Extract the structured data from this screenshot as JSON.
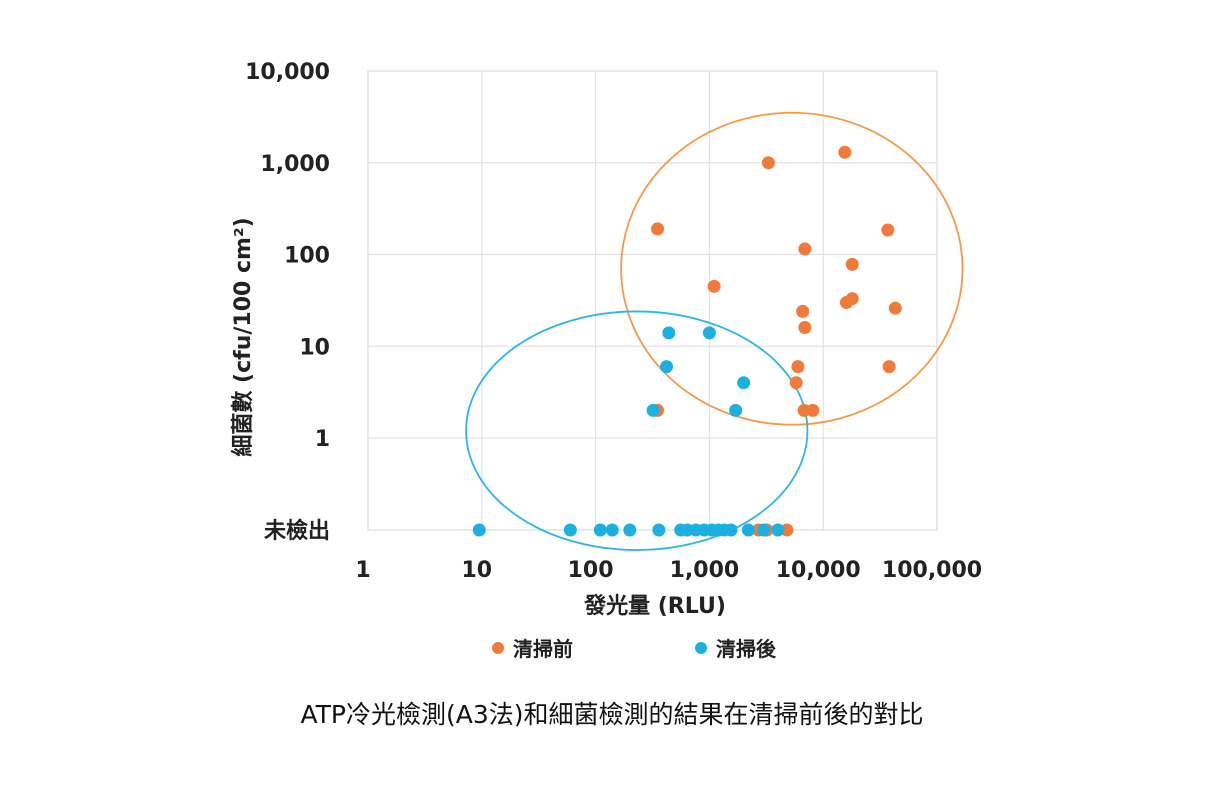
{
  "chart_data": {
    "type": "scatter",
    "title": "",
    "caption": "ATP冷光檢測(A3法)和細菌檢測的結果在清掃前後的對比",
    "xlabel": "發光量 (RLU)",
    "ylabel": "細菌數 (cfu/100 cm²)",
    "x_scale": "log",
    "y_scale": "log",
    "xlim": [
      1,
      100000
    ],
    "ylim": [
      1,
      10000
    ],
    "x_ticks": [
      {
        "value": 1,
        "label": "1"
      },
      {
        "value": 10,
        "label": "10"
      },
      {
        "value": 100,
        "label": "100"
      },
      {
        "value": 1000,
        "label": "1,000"
      },
      {
        "value": 10000,
        "label": "10,000"
      },
      {
        "value": 100000,
        "label": "100,000"
      }
    ],
    "y_ticks": [
      {
        "value": 10000,
        "label": "10,000"
      },
      {
        "value": 1000,
        "label": "1,000"
      },
      {
        "value": 100,
        "label": "100"
      },
      {
        "value": 10,
        "label": "10"
      },
      {
        "value": 1,
        "label": "1"
      },
      {
        "value": "not_detected",
        "label": "未檢出"
      }
    ],
    "grid": true,
    "legend_position": "bottom",
    "series": [
      {
        "name": "清掃前",
        "color": "#ef7a3a",
        "points": [
          {
            "x": 3300,
            "y": 1000
          },
          {
            "x": 15500,
            "y": 1300
          },
          {
            "x": 350,
            "y": 190
          },
          {
            "x": 37000,
            "y": 185
          },
          {
            "x": 6900,
            "y": 115
          },
          {
            "x": 18000,
            "y": 78
          },
          {
            "x": 1100,
            "y": 45
          },
          {
            "x": 18000,
            "y": 33
          },
          {
            "x": 16000,
            "y": 30
          },
          {
            "x": 43000,
            "y": 26
          },
          {
            "x": 6600,
            "y": 24
          },
          {
            "x": 6900,
            "y": 16
          },
          {
            "x": 6000,
            "y": 6
          },
          {
            "x": 38000,
            "y": 6
          },
          {
            "x": 5800,
            "y": 4
          },
          {
            "x": 350,
            "y": 2
          },
          {
            "x": 6800,
            "y": 2
          },
          {
            "x": 8100,
            "y": 2
          },
          {
            "x": 2700,
            "y": "not_detected"
          },
          {
            "x": 3200,
            "y": "not_detected"
          },
          {
            "x": 4800,
            "y": "not_detected"
          }
        ]
      },
      {
        "name": "清掃後",
        "color": "#1cb0e0",
        "points": [
          {
            "x": 440,
            "y": 14
          },
          {
            "x": 1000,
            "y": 14
          },
          {
            "x": 420,
            "y": 6
          },
          {
            "x": 2000,
            "y": 4
          },
          {
            "x": 320,
            "y": 2
          },
          {
            "x": 1700,
            "y": 2
          },
          {
            "x": 9.5,
            "y": "not_detected"
          },
          {
            "x": 60,
            "y": "not_detected"
          },
          {
            "x": 110,
            "y": "not_detected"
          },
          {
            "x": 140,
            "y": "not_detected"
          },
          {
            "x": 200,
            "y": "not_detected"
          },
          {
            "x": 360,
            "y": "not_detected"
          },
          {
            "x": 560,
            "y": "not_detected"
          },
          {
            "x": 640,
            "y": "not_detected"
          },
          {
            "x": 760,
            "y": "not_detected"
          },
          {
            "x": 900,
            "y": "not_detected"
          },
          {
            "x": 1050,
            "y": "not_detected"
          },
          {
            "x": 1200,
            "y": "not_detected"
          },
          {
            "x": 1350,
            "y": "not_detected"
          },
          {
            "x": 1550,
            "y": "not_detected"
          },
          {
            "x": 2200,
            "y": "not_detected"
          },
          {
            "x": 3000,
            "y": "not_detected"
          },
          {
            "x": 4000,
            "y": "not_detected"
          }
        ]
      }
    ],
    "annotations": [
      {
        "type": "ellipse",
        "series": "清掃前",
        "color": "#f39a4a",
        "cx": 5300,
        "cy": 70,
        "rx_decades": 1.5,
        "ry_decades": 1.7
      },
      {
        "type": "ellipse",
        "series": "清掃後",
        "color": "#2bb6e4",
        "cx": 230,
        "cy": 1.2,
        "rx_decades": 1.5,
        "ry_decades": 1.3
      }
    ]
  }
}
